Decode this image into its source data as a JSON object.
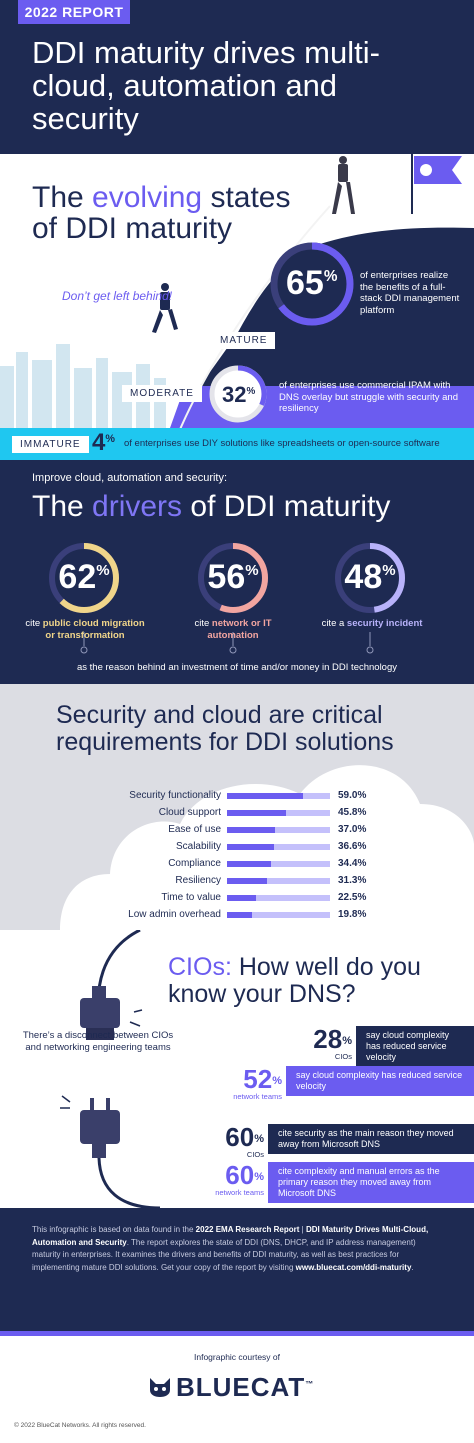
{
  "header": {
    "tag": "2022 REPORT",
    "title": "DDI maturity drives multi-cloud, automation and security"
  },
  "evolving": {
    "title_pre": "The ",
    "title_hl": "evolving",
    "title_post": " states of DDI maturity",
    "tagline": "Don’t get left behind!",
    "mature": {
      "label": "MATURE",
      "value": 65,
      "desc": "of enterprises realize the benefits of a full-stack DDI management platform"
    },
    "moderate": {
      "label": "MODERATE",
      "value": 32,
      "desc": "of enterprises use commercial IPAM with DNS overlay but struggle with security and resiliency"
    },
    "immature": {
      "label": "IMMATURE",
      "value": 4,
      "desc": "of enterprises use DIY solutions like spreadsheets or open-source software"
    }
  },
  "drivers": {
    "subtitle": "Improve cloud, automation and security:",
    "title_pre": "The ",
    "title_hl": "drivers",
    "title_post": " of DDI maturity",
    "items": [
      {
        "value": 62,
        "pre": "cite ",
        "bold": "public cloud migration or transformation",
        "color": "#f0d58a"
      },
      {
        "value": 56,
        "pre": "cite ",
        "bold": "network or IT automation",
        "color": "#f2a5a0"
      },
      {
        "value": 48,
        "pre": "cite a ",
        "bold": "security incident",
        "color": "#b8b2fa"
      }
    ],
    "reason": "as the reason behind an investment of time and/or money in DDI technology",
    "colors": {
      "accent": "#6b5cf0",
      "gold": "#f0d58a",
      "coral": "#f2a5a0",
      "lavender": "#b8b2fa"
    }
  },
  "security": {
    "title": "Security and cloud are critical requirements for DDI solutions",
    "chart_data": {
      "type": "bar",
      "categories": [
        "Security functionality",
        "Cloud support",
        "Ease of use",
        "Scalability",
        "Compliance",
        "Resiliency",
        "Time to value",
        "Low admin overhead"
      ],
      "values": [
        59.0,
        45.8,
        37.0,
        36.6,
        34.4,
        31.3,
        22.5,
        19.8
      ],
      "labels": [
        "59.0%",
        "45.8%",
        "37.0%",
        "36.6%",
        "34.4%",
        "31.3%",
        "22.5%",
        "19.8%"
      ],
      "xlim": [
        0,
        80
      ]
    }
  },
  "cio": {
    "title_hl": "CIOs:",
    "title_rest": " How well do you know your DNS?",
    "disconnect": "There’s a disconnect between CIOs and networking engineering teams",
    "stats": [
      {
        "value": "28",
        "who": "CIOs",
        "text": "say cloud complexity has reduced service velocity",
        "style": "dark"
      },
      {
        "value": "52",
        "who": "network teams",
        "text": "say cloud complexity has reduced service velocity",
        "style": "purple"
      },
      {
        "value": "60",
        "who": "CIOs",
        "text": "cite security as the main reason they moved away from Microsoft DNS",
        "style": "dark"
      },
      {
        "value": "60",
        "who": "network teams",
        "text": "cite complexity and manual errors as the primary reason they moved away from Microsoft DNS",
        "style": "purple"
      }
    ]
  },
  "footer": {
    "t1": "This infographic is based on data found in the ",
    "b1": "2022 EMA Research Report",
    "t2": " | ",
    "b2": "DDI Maturity Drives Multi-Cloud, Automation and Security",
    "t3": ". The report explores the state of DDI (DNS, DHCP, and IP address management) maturity in enterprises. It examines the drivers and benefits of DDI maturity, as well as best practices for implementing mature DDI solutions. Get your copy of the report by visiting ",
    "b3": "www.bluecat.com/ddi-maturity",
    "t4": "."
  },
  "bottom": {
    "courtesy": "Infographic courtesy of",
    "brand": "BLUECAT",
    "tm": "™",
    "copyright": "© 2022 BlueCat Networks. All rights reserved."
  }
}
